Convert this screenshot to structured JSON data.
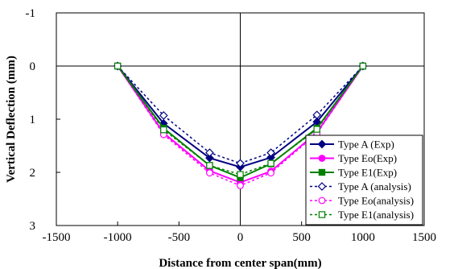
{
  "chart_data": {
    "type": "line",
    "title": "",
    "xlabel": "Distance from center span(mm)",
    "ylabel": "Vertical Deflection  (mm)",
    "xlim": [
      -1500,
      1500
    ],
    "ylim": [
      -1,
      3
    ],
    "y_inverted": true,
    "x_ticks": [
      "-1500",
      "-1000",
      "-500",
      "0",
      "500",
      "1000",
      "1500"
    ],
    "y_ticks": [
      "-1",
      "0",
      "1",
      "2",
      "3"
    ],
    "grid": false,
    "zero_lines": true,
    "legend_position": "bottom-right",
    "x": [
      -1000,
      -625,
      -250,
      0,
      250,
      625,
      1000
    ],
    "series": [
      {
        "name": "Type A (Exp)",
        "values": [
          0,
          1.08,
          1.73,
          1.9,
          1.72,
          1.05,
          0
        ],
        "color": "#000080",
        "dash": "solid",
        "marker": "diamond",
        "filled": true
      },
      {
        "name": "Type Eo(Exp)",
        "values": [
          0,
          1.26,
          1.97,
          2.19,
          1.98,
          1.25,
          0
        ],
        "color": "#ff00ff",
        "dash": "solid",
        "marker": "circle",
        "filled": true
      },
      {
        "name": "Type E1(Exp)",
        "values": [
          0,
          1.17,
          1.87,
          2.1,
          1.84,
          1.17,
          0
        ],
        "color": "#008000",
        "dash": "solid",
        "marker": "square",
        "filled": true
      },
      {
        "name": "Type A (analysis)",
        "values": [
          0,
          0.93,
          1.63,
          1.83,
          1.63,
          0.92,
          0
        ],
        "color": "#000080",
        "dash": "dotted",
        "marker": "diamond",
        "filled": false
      },
      {
        "name": "Type Eo(analysis)",
        "values": [
          0,
          1.29,
          2.01,
          2.25,
          2.01,
          1.27,
          0
        ],
        "color": "#ff00ff",
        "dash": "dotted",
        "marker": "circle",
        "filled": false
      },
      {
        "name": "Type E1(analysis)",
        "values": [
          0,
          1.2,
          1.87,
          2.04,
          1.83,
          1.19,
          0
        ],
        "color": "#008000",
        "dash": "dotted",
        "marker": "square",
        "filled": false
      }
    ]
  }
}
